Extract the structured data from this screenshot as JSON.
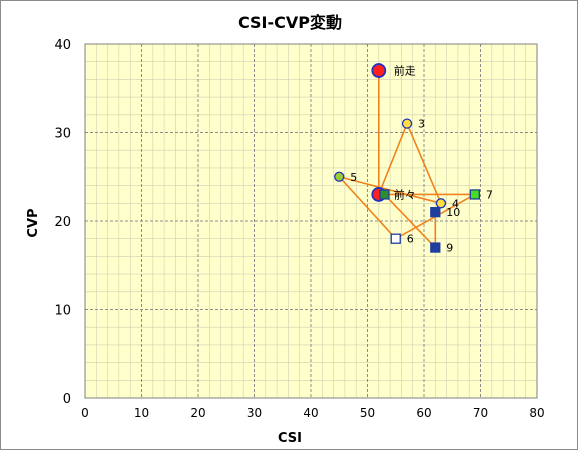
{
  "chart_data": {
    "type": "scatter",
    "title": "CSI-CVP変動",
    "xlabel": "CSI",
    "ylabel": "CVP",
    "xlim": [
      0,
      80
    ],
    "ylim": [
      0,
      40
    ],
    "xticks": [
      0,
      10,
      20,
      30,
      40,
      50,
      60,
      70,
      80
    ],
    "yticks": [
      0,
      10,
      20,
      30,
      40
    ],
    "grid": true,
    "colors": {
      "plot_background": "#FFFFCC",
      "grid_major": "#8C8C8C",
      "grid_minor": "#CFCFB0",
      "connector_line": "#F0821E",
      "circle_fill_yellow": "#FFE040",
      "circle_fill_green": "#9ACD32",
      "circle_fill_red": "#FF2020",
      "circle_edge": "#2030C0",
      "square_fill_navy": "#1F3F9F",
      "square_fill_lime": "#44DD22",
      "square_fill_white": "#FFFFFF"
    },
    "points": [
      {
        "label": "前走",
        "x": 52,
        "y": 37,
        "marker": "circle",
        "fill": "#FF2020",
        "size": "large"
      },
      {
        "label": "前々",
        "x": 52,
        "y": 23,
        "marker": "circle",
        "fill": "#FF2020",
        "size": "large"
      },
      {
        "label": "3",
        "x": 57,
        "y": 31,
        "marker": "circle",
        "fill": "#FFE040",
        "size": "small"
      },
      {
        "label": "4",
        "x": 63,
        "y": 22,
        "marker": "circle",
        "fill": "#FFE040",
        "size": "small"
      },
      {
        "label": "5",
        "x": 45,
        "y": 25,
        "marker": "circle",
        "fill": "#9ACD32",
        "size": "small"
      },
      {
        "label": "6",
        "x": 55,
        "y": 18,
        "marker": "square",
        "fill": "#FFFFFF",
        "size": "small"
      },
      {
        "label": "7",
        "x": 69,
        "y": 23,
        "marker": "square",
        "fill": "#44DD22",
        "size": "small"
      },
      {
        "label": "",
        "x": 53,
        "y": 23,
        "marker": "square",
        "fill": "#2E8B2E",
        "size": "small"
      },
      {
        "label": "9",
        "x": 62,
        "y": 17,
        "marker": "square",
        "fill": "#1F3F9F",
        "size": "small"
      },
      {
        "label": "10",
        "x": 62,
        "y": 21,
        "marker": "square",
        "fill": "#1F3F9F",
        "size": "small"
      }
    ],
    "connector_path": [
      {
        "x": 52,
        "y": 37
      },
      {
        "x": 52,
        "y": 23
      },
      {
        "x": 57,
        "y": 31
      },
      {
        "x": 63,
        "y": 22
      },
      {
        "x": 45,
        "y": 25
      },
      {
        "x": 55,
        "y": 18
      },
      {
        "x": 69,
        "y": 23
      },
      {
        "x": 53,
        "y": 23
      },
      {
        "x": 62,
        "y": 17
      },
      {
        "x": 62,
        "y": 21
      }
    ]
  }
}
